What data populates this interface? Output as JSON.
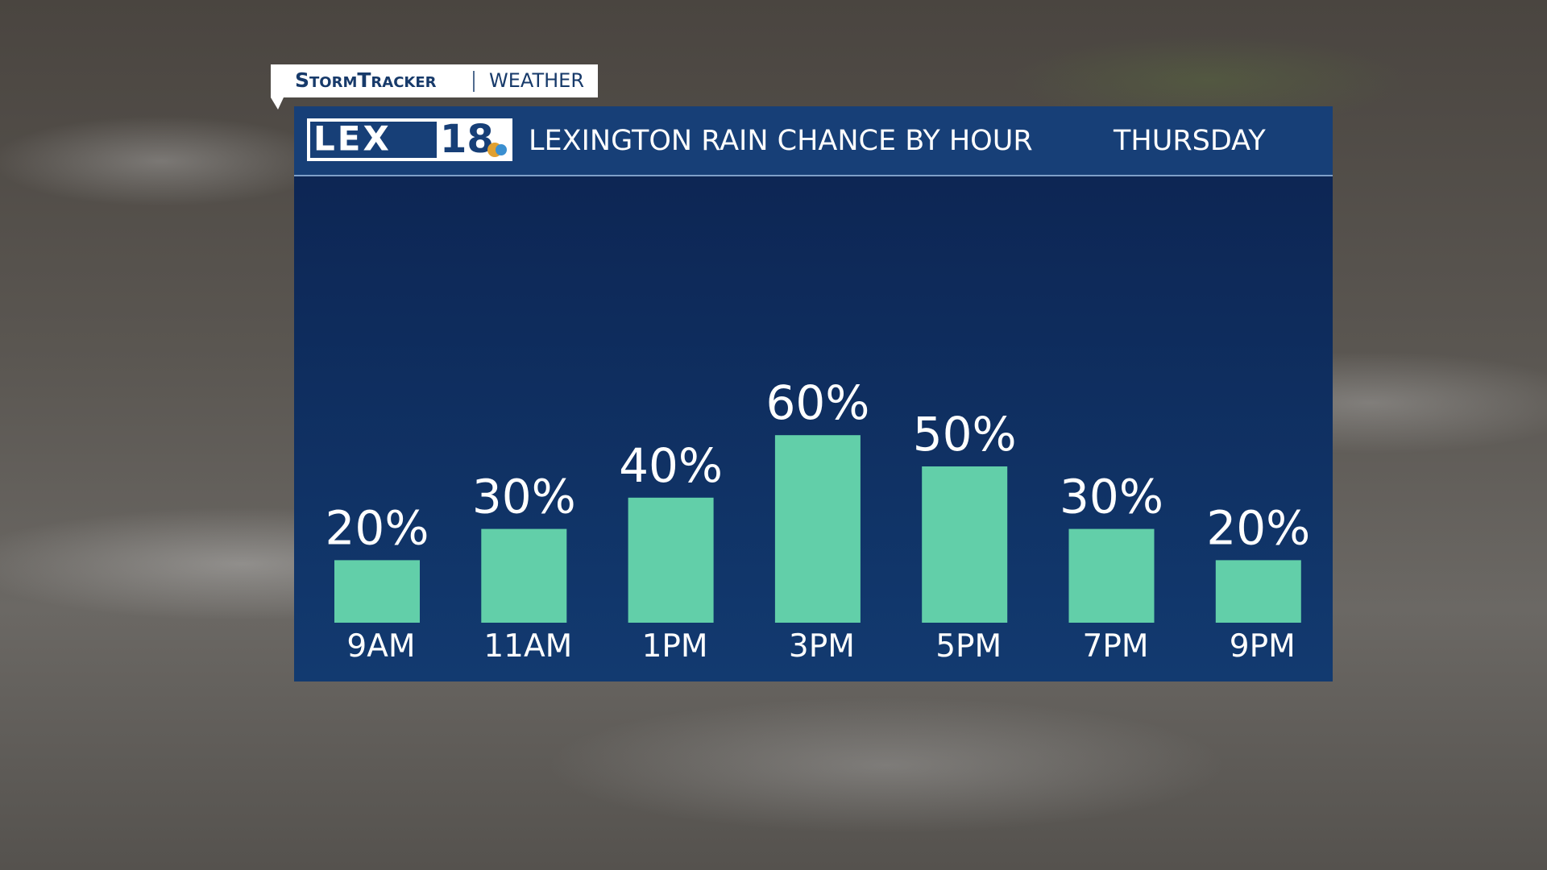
{
  "header": {
    "brand": "StormTracker",
    "section": "WEATHER"
  },
  "logo": {
    "letters": "LEX",
    "number": "18"
  },
  "chart_data": {
    "type": "bar",
    "title": "LEXINGTON RAIN CHANCE BY HOUR",
    "subtitle": "THURSDAY",
    "categories": [
      "9AM",
      "11AM",
      "1PM",
      "3PM",
      "5PM",
      "7PM",
      "9PM"
    ],
    "values": [
      20,
      30,
      40,
      60,
      50,
      30,
      20
    ],
    "value_labels": [
      "20%",
      "30%",
      "40%",
      "60%",
      "50%",
      "30%",
      "20%"
    ],
    "color": "#62cfa9"
  }
}
